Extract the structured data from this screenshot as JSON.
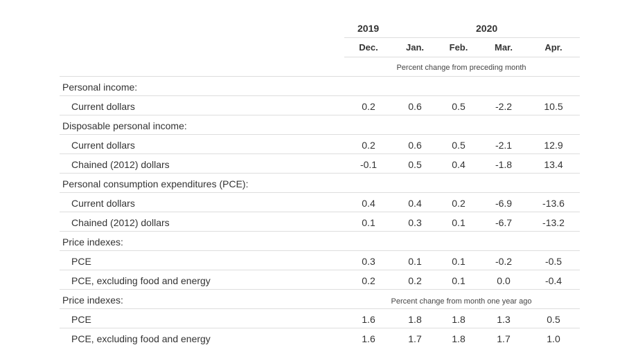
{
  "header": {
    "year_2019": "2019",
    "year_2020": "2020",
    "months": [
      "Dec.",
      "Jan.",
      "Feb.",
      "Mar.",
      "Apr."
    ],
    "note_monthly": "Percent change from preceding month",
    "note_yearly": "Percent change from month one year ago"
  },
  "rows": [
    {
      "label": "Personal income:",
      "type": "section"
    },
    {
      "label": "Current dollars",
      "type": "data",
      "values": [
        "0.2",
        "0.6",
        "0.5",
        "-2.2",
        "10.5"
      ]
    },
    {
      "label": "Disposable personal income:",
      "type": "section"
    },
    {
      "label": "Current dollars",
      "type": "data",
      "values": [
        "0.2",
        "0.6",
        "0.5",
        "-2.1",
        "12.9"
      ]
    },
    {
      "label": "Chained (2012) dollars",
      "type": "data",
      "values": [
        "-0.1",
        "0.5",
        "0.4",
        "-1.8",
        "13.4"
      ]
    },
    {
      "label": "Personal consumption expenditures (PCE):",
      "type": "section"
    },
    {
      "label": "Current dollars",
      "type": "data",
      "values": [
        "0.4",
        "0.4",
        "0.2",
        "-6.9",
        "-13.6"
      ]
    },
    {
      "label": "Chained (2012) dollars",
      "type": "data",
      "values": [
        "0.1",
        "0.3",
        "0.1",
        "-6.7",
        "-13.2"
      ]
    },
    {
      "label": "Price indexes:",
      "type": "section"
    },
    {
      "label": "PCE",
      "type": "data",
      "values": [
        "0.3",
        "0.1",
        "0.1",
        "-0.2",
        "-0.5"
      ]
    },
    {
      "label": "PCE, excluding food and energy",
      "type": "data",
      "values": [
        "0.2",
        "0.2",
        "0.1",
        "0.0",
        "-0.4"
      ]
    },
    {
      "label": "Price indexes:",
      "type": "section-note"
    },
    {
      "label": "PCE",
      "type": "data",
      "values": [
        "1.6",
        "1.8",
        "1.8",
        "1.3",
        "0.5"
      ]
    },
    {
      "label": "PCE, excluding food and energy",
      "type": "data",
      "values": [
        "1.6",
        "1.7",
        "1.8",
        "1.7",
        "1.0"
      ]
    }
  ]
}
